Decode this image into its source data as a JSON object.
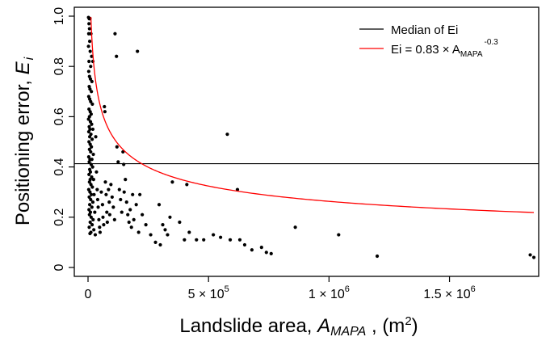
{
  "chart_data": {
    "type": "scatter",
    "xlabel": {
      "prefix": "Landslide area, ",
      "var": "A",
      "var_sub": "MAPA",
      "suffix": " , (m",
      "suffix_sup": "2",
      "close": ")"
    },
    "ylabel": {
      "prefix": "Positioning error,  ",
      "var": "E",
      "var_sub": "i"
    },
    "xlim": [
      0,
      1850000
    ],
    "ylim": [
      0,
      1.0
    ],
    "x_ticks": [
      {
        "value": 0,
        "label": "0"
      },
      {
        "value": 500000,
        "mantissa": "5",
        "times": " × 10",
        "exp": "5"
      },
      {
        "value": 1000000,
        "mantissa": "1",
        "times": " × 10",
        "exp": "6"
      },
      {
        "value": 1500000,
        "mantissa": "1.5",
        "times": " × 10",
        "exp": "6"
      }
    ],
    "y_ticks": [
      {
        "value": 0,
        "label": "0"
      },
      {
        "value": 0.2,
        "label": "0.2"
      },
      {
        "value": 0.4,
        "label": "0.4"
      },
      {
        "value": 0.6,
        "label": "0.6"
      },
      {
        "value": 0.8,
        "label": "0.8"
      },
      {
        "value": 1.0,
        "label": "1.0"
      }
    ],
    "median_line": {
      "y": 0.413,
      "color": "#000000"
    },
    "fit_curve": {
      "coef": 0.83,
      "exponent": -0.3,
      "color": "#ff0000"
    },
    "legend": {
      "position": "top-right",
      "entries": [
        {
          "label": "Median of Ei",
          "color": "#000000"
        },
        {
          "base": "Ei = 0.83 × A",
          "sub": "MAPA",
          "sup": "-0.3",
          "color": "#ff0000"
        }
      ]
    },
    "points": [
      [
        2000,
        0.995
      ],
      [
        5000,
        0.99
      ],
      [
        8000,
        0.99
      ],
      [
        4000,
        0.97
      ],
      [
        6000,
        0.95
      ],
      [
        3000,
        0.93
      ],
      [
        12000,
        0.93
      ],
      [
        7000,
        0.9
      ],
      [
        2000,
        0.88
      ],
      [
        9000,
        0.86
      ],
      [
        15000,
        0.84
      ],
      [
        4000,
        0.82
      ],
      [
        20000,
        0.82
      ],
      [
        11000,
        0.8
      ],
      [
        3000,
        0.78
      ],
      [
        6000,
        0.76
      ],
      [
        10000,
        0.75
      ],
      [
        16000,
        0.74
      ],
      [
        5000,
        0.72
      ],
      [
        8000,
        0.71
      ],
      [
        14000,
        0.7
      ],
      [
        3000,
        0.68
      ],
      [
        7000,
        0.67
      ],
      [
        11000,
        0.66
      ],
      [
        18000,
        0.65
      ],
      [
        4000,
        0.63
      ],
      [
        9000,
        0.62
      ],
      [
        13000,
        0.61
      ],
      [
        6000,
        0.6
      ],
      [
        2000,
        0.59
      ],
      [
        10000,
        0.58
      ],
      [
        15000,
        0.57
      ],
      [
        5000,
        0.56
      ],
      [
        8000,
        0.55
      ],
      [
        20000,
        0.55
      ],
      [
        3000,
        0.54
      ],
      [
        12000,
        0.53
      ],
      [
        7000,
        0.52
      ],
      [
        17000,
        0.51
      ],
      [
        4000,
        0.5
      ],
      [
        9000,
        0.49
      ],
      [
        14000,
        0.48
      ],
      [
        6000,
        0.47
      ],
      [
        11000,
        0.46
      ],
      [
        22000,
        0.45
      ],
      [
        3000,
        0.44
      ],
      [
        8000,
        0.43
      ],
      [
        16000,
        0.43
      ],
      [
        5000,
        0.42
      ],
      [
        13000,
        0.41
      ],
      [
        19000,
        0.4
      ],
      [
        7000,
        0.39
      ],
      [
        10000,
        0.38
      ],
      [
        4000,
        0.37
      ],
      [
        15000,
        0.36
      ],
      [
        9000,
        0.35
      ],
      [
        23000,
        0.35
      ],
      [
        6000,
        0.34
      ],
      [
        12000,
        0.33
      ],
      [
        18000,
        0.32
      ],
      [
        3000,
        0.31
      ],
      [
        8000,
        0.3
      ],
      [
        14000,
        0.29
      ],
      [
        25000,
        0.29
      ],
      [
        5000,
        0.28
      ],
      [
        11000,
        0.27
      ],
      [
        20000,
        0.26
      ],
      [
        7000,
        0.25
      ],
      [
        16000,
        0.24
      ],
      [
        4000,
        0.23
      ],
      [
        10000,
        0.22
      ],
      [
        28000,
        0.22
      ],
      [
        6000,
        0.21
      ],
      [
        13000,
        0.2
      ],
      [
        21000,
        0.19
      ],
      [
        9000,
        0.18
      ],
      [
        17000,
        0.17
      ],
      [
        5000,
        0.16
      ],
      [
        24000,
        0.15
      ],
      [
        12000,
        0.14
      ],
      [
        8000,
        0.135
      ],
      [
        30000,
        0.13
      ],
      [
        32000,
        0.52
      ],
      [
        35000,
        0.38
      ],
      [
        38000,
        0.31
      ],
      [
        40000,
        0.27
      ],
      [
        42000,
        0.24
      ],
      [
        45000,
        0.19
      ],
      [
        48000,
        0.16
      ],
      [
        50000,
        0.14
      ],
      [
        55000,
        0.3
      ],
      [
        60000,
        0.25
      ],
      [
        62000,
        0.2
      ],
      [
        65000,
        0.17
      ],
      [
        68000,
        0.64
      ],
      [
        70000,
        0.62
      ],
      [
        72000,
        0.34
      ],
      [
        75000,
        0.29
      ],
      [
        78000,
        0.22
      ],
      [
        80000,
        0.18
      ],
      [
        85000,
        0.31
      ],
      [
        88000,
        0.26
      ],
      [
        90000,
        0.21
      ],
      [
        95000,
        0.33
      ],
      [
        100000,
        0.28
      ],
      [
        105000,
        0.24
      ],
      [
        110000,
        0.19
      ],
      [
        112000,
        0.93
      ],
      [
        118000,
        0.84
      ],
      [
        120000,
        0.48
      ],
      [
        125000,
        0.42
      ],
      [
        130000,
        0.31
      ],
      [
        135000,
        0.27
      ],
      [
        140000,
        0.22
      ],
      [
        145000,
        0.46
      ],
      [
        148000,
        0.41
      ],
      [
        150000,
        0.3
      ],
      [
        155000,
        0.35
      ],
      [
        160000,
        0.26
      ],
      [
        165000,
        0.21
      ],
      [
        170000,
        0.18
      ],
      [
        175000,
        0.23
      ],
      [
        180000,
        0.16
      ],
      [
        185000,
        0.29
      ],
      [
        190000,
        0.19
      ],
      [
        200000,
        0.25
      ],
      [
        205000,
        0.86
      ],
      [
        210000,
        0.14
      ],
      [
        215000,
        0.29
      ],
      [
        225000,
        0.21
      ],
      [
        240000,
        0.17
      ],
      [
        260000,
        0.13
      ],
      [
        280000,
        0.1
      ],
      [
        295000,
        0.25
      ],
      [
        300000,
        0.09
      ],
      [
        310000,
        0.17
      ],
      [
        320000,
        0.15
      ],
      [
        330000,
        0.13
      ],
      [
        340000,
        0.2
      ],
      [
        350000,
        0.34
      ],
      [
        380000,
        0.18
      ],
      [
        400000,
        0.11
      ],
      [
        410000,
        0.33
      ],
      [
        420000,
        0.14
      ],
      [
        450000,
        0.11
      ],
      [
        480000,
        0.11
      ],
      [
        520000,
        0.13
      ],
      [
        550000,
        0.12
      ],
      [
        578000,
        0.53
      ],
      [
        590000,
        0.11
      ],
      [
        620000,
        0.31
      ],
      [
        630000,
        0.11
      ],
      [
        650000,
        0.09
      ],
      [
        680000,
        0.07
      ],
      [
        720000,
        0.08
      ],
      [
        740000,
        0.06
      ],
      [
        760000,
        0.055
      ],
      [
        860000,
        0.16
      ],
      [
        1040000,
        0.13
      ],
      [
        1200000,
        0.045
      ],
      [
        1835000,
        0.05
      ],
      [
        1850000,
        0.04
      ]
    ]
  }
}
